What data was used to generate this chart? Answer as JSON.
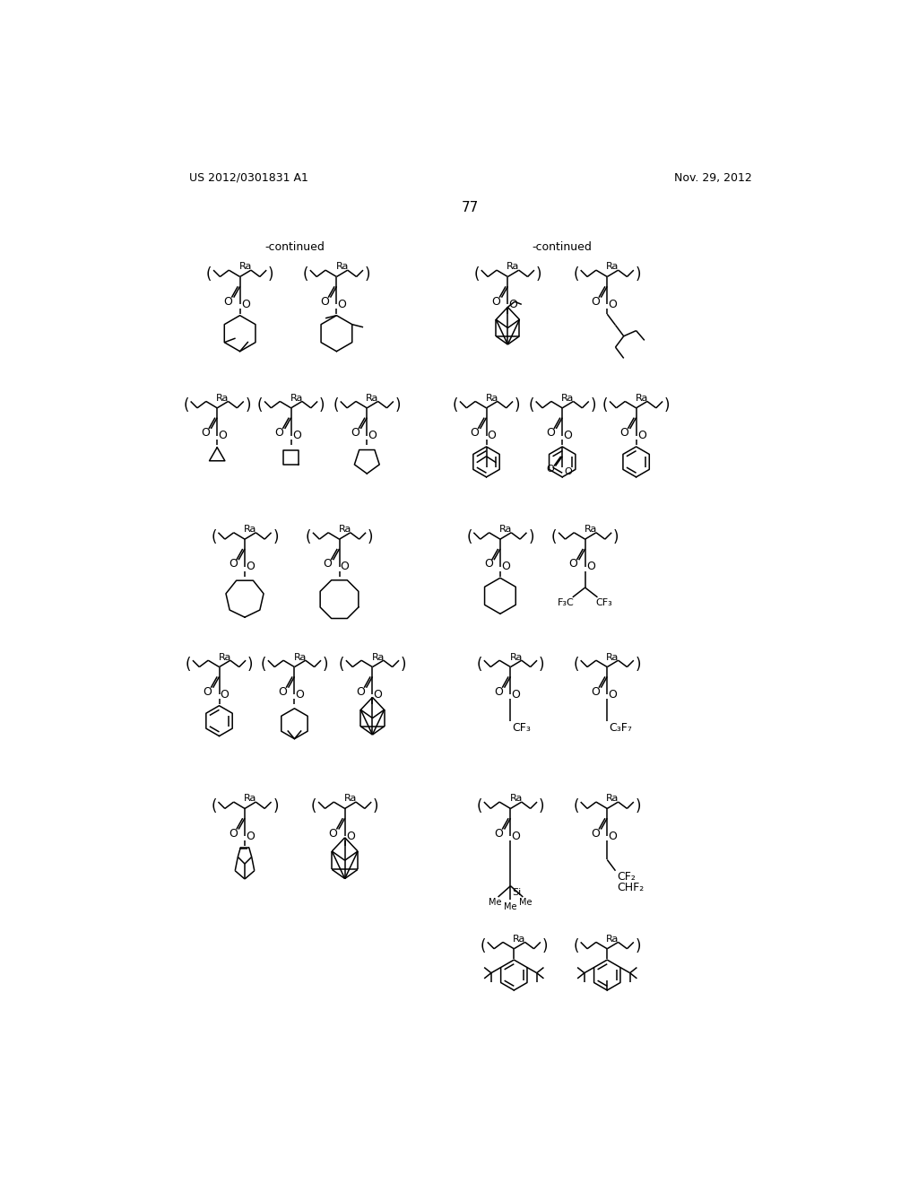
{
  "page_number": "77",
  "header_left": "US 2012/0301831 A1",
  "header_right": "Nov. 29, 2012",
  "background_color": "#ffffff",
  "text_color": "#000000",
  "continued_left": "-continued",
  "continued_right": "-continued",
  "figsize": [
    10.24,
    13.2
  ],
  "dpi": 100
}
